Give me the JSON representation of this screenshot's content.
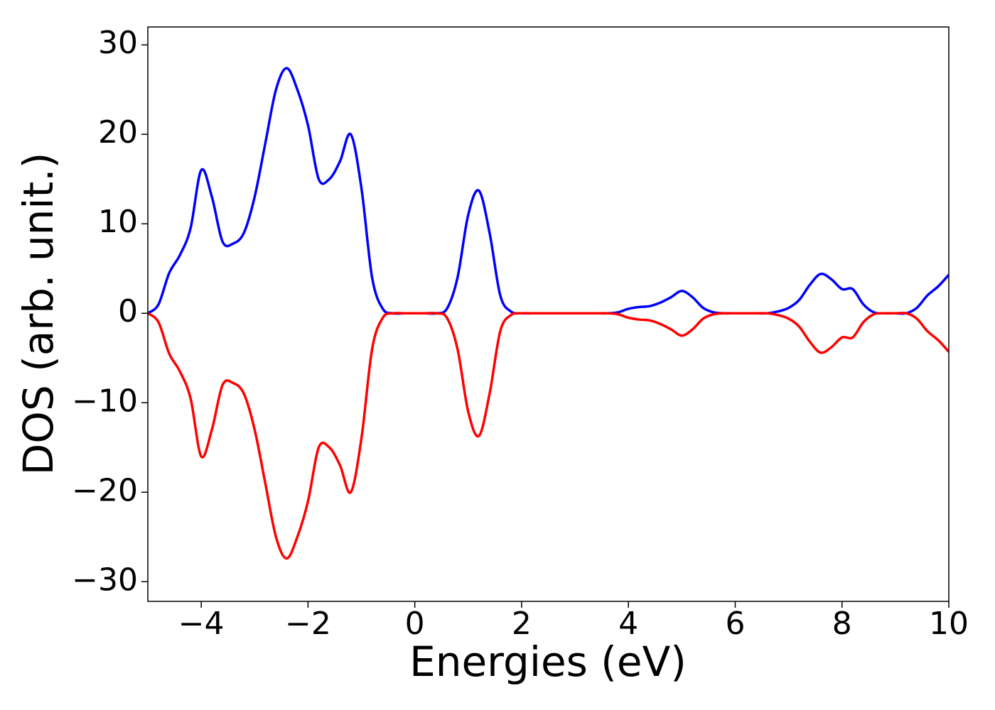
{
  "chart_data": {
    "type": "line",
    "xlabel": "Energies (eV)",
    "ylabel": "DOS (arb. unit.)",
    "x": [
      -5,
      -4.8,
      -4.6,
      -4.4,
      -4.2,
      -4,
      -3.8,
      -3.6,
      -3.4,
      -3.2,
      -3,
      -2.8,
      -2.6,
      -2.4,
      -2.2,
      -2,
      -1.8,
      -1.6,
      -1.4,
      -1.2,
      -1,
      -0.8,
      -0.6,
      -0.4,
      -0.2,
      0,
      0.2,
      0.4,
      0.6,
      0.8,
      1,
      1.2,
      1.4,
      1.6,
      1.8,
      2,
      2.2,
      2.4,
      2.6,
      2.8,
      3,
      3.2,
      3.4,
      3.6,
      3.8,
      4,
      4.2,
      4.4,
      4.6,
      4.8,
      5,
      5.2,
      5.4,
      5.6,
      5.8,
      6,
      6.2,
      6.4,
      6.6,
      6.8,
      7,
      7.2,
      7.4,
      7.6,
      7.8,
      8,
      8.2,
      8.4,
      8.6,
      8.8,
      9,
      9.2,
      9.4,
      9.6,
      9.8,
      10
    ],
    "series": [
      {
        "color": "#0000ff",
        "values": [
          0,
          1,
          4.5,
          6.5,
          9.5,
          16,
          13,
          8,
          7.8,
          9,
          13,
          19,
          25,
          27.4,
          25,
          21,
          15,
          15,
          17,
          20,
          14,
          4,
          0.5,
          0,
          0,
          0,
          0,
          0,
          0.5,
          4,
          11,
          13.7,
          9,
          2,
          0.2,
          0,
          0,
          0,
          0,
          0,
          0,
          0,
          0,
          0,
          0.1,
          0.5,
          0.7,
          0.8,
          1.2,
          1.8,
          2.5,
          1.8,
          0.6,
          0.1,
          0,
          0,
          0,
          0,
          0,
          0.2,
          0.6,
          1.5,
          3.2,
          4.4,
          3.8,
          2.7,
          2.7,
          1,
          0.1,
          0,
          0,
          0,
          0.6,
          2,
          3,
          4.3
        ]
      },
      {
        "color": "#ff0000",
        "values": [
          0,
          -1,
          -4.5,
          -6.5,
          -9.5,
          -16,
          -13,
          -8,
          -7.8,
          -9,
          -13,
          -19,
          -25,
          -27.4,
          -25,
          -21,
          -15,
          -15,
          -17,
          -20,
          -14,
          -4,
          -0.5,
          0,
          0,
          0,
          0,
          0,
          -0.5,
          -4,
          -11,
          -13.7,
          -9,
          -2,
          -0.2,
          0,
          0,
          0,
          0,
          0,
          0,
          0,
          0,
          0,
          -0.1,
          -0.5,
          -0.7,
          -0.8,
          -1.2,
          -1.8,
          -2.5,
          -1.8,
          -0.6,
          -0.1,
          0,
          0,
          0,
          0,
          0,
          -0.2,
          -0.6,
          -1.5,
          -3.2,
          -4.4,
          -3.8,
          -2.7,
          -2.7,
          -1,
          -0.1,
          0,
          0,
          0,
          -0.6,
          -2,
          -3,
          -4.3
        ]
      }
    ],
    "xlim": [
      -5,
      10
    ],
    "xticks": [
      {
        "value": -4,
        "label": "−4"
      },
      {
        "value": -2,
        "label": "−2"
      },
      0,
      2,
      4,
      6,
      8,
      10
    ],
    "ylim": [
      -32.2,
      32
    ],
    "yticks": [
      {
        "value": -30,
        "label": "−30"
      },
      {
        "value": -20,
        "label": "−20"
      },
      {
        "value": -10,
        "label": "−10"
      },
      0,
      10,
      20,
      30
    ],
    "grid": false
  }
}
